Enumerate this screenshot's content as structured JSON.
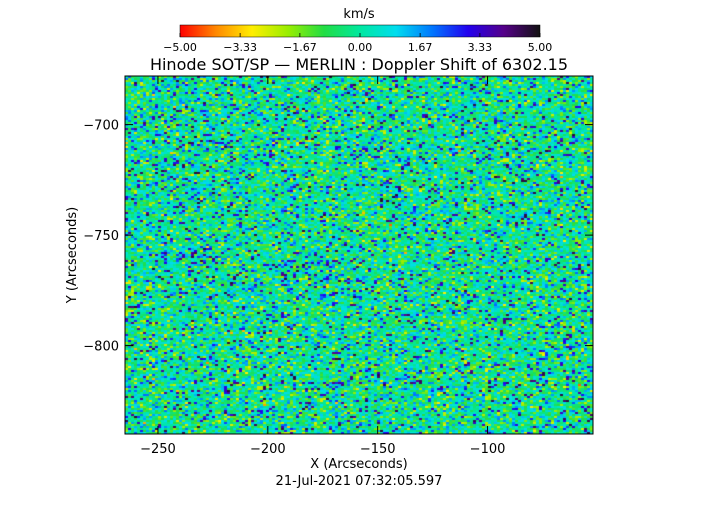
{
  "chart_data": {
    "type": "heatmap",
    "title": "Hinode SOT/SP — MERLIN : Doppler Shift of 6302.15",
    "xlabel": "X (Arcseconds)",
    "ylabel": "Y (Arcseconds)",
    "timestamp": "21-Jul-2021 07:32:05.597",
    "xlim": [
      -265,
      -52
    ],
    "ylim": [
      -840,
      -678
    ],
    "x_ticks": [
      -250,
      -200,
      -150,
      -100
    ],
    "x_tick_labels": [
      "−250",
      "−200",
      "−150",
      "−100"
    ],
    "y_ticks": [
      -700,
      -750,
      -800
    ],
    "y_tick_labels": [
      "−700",
      "−750",
      "−800"
    ],
    "colorbar": {
      "label": "km/s",
      "range": [
        -5.0,
        5.0
      ],
      "ticks": [
        -5.0,
        -3.33,
        -1.67,
        0.0,
        1.67,
        3.33,
        5.0
      ],
      "tick_labels": [
        "−5.00",
        "−3.33",
        "−1.67",
        "0.00",
        "1.67",
        "3.33",
        "5.00"
      ],
      "colormap": [
        "#ff0000",
        "#ff8800",
        "#ffee00",
        "#99ee00",
        "#22dd44",
        "#00e8a0",
        "#00ddee",
        "#0077ff",
        "#2200ee",
        "#550088",
        "#111111"
      ]
    }
  }
}
